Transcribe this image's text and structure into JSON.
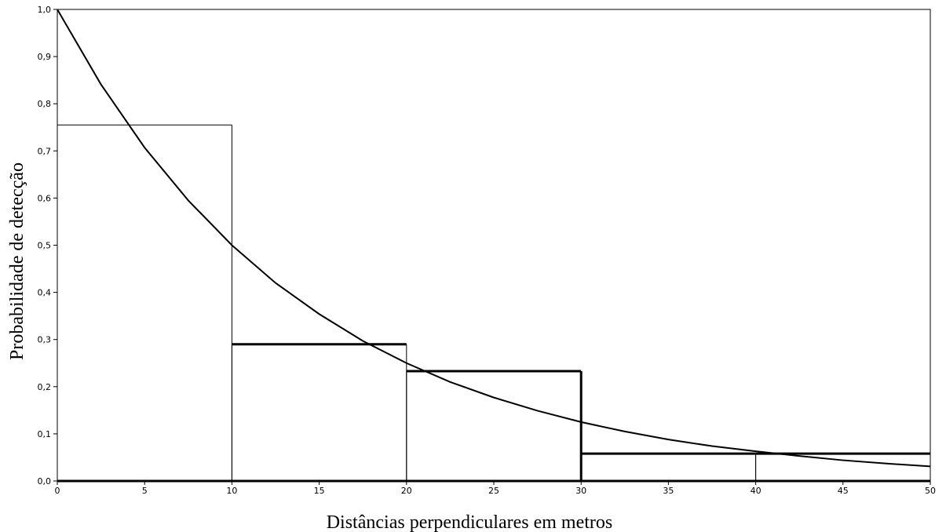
{
  "chart_data": {
    "type": "bar",
    "title": "",
    "xlabel": "Distâncias perpendiculares em metros",
    "ylabel": "Probabilidade de detecção",
    "xlim": [
      0,
      50
    ],
    "ylim": [
      0,
      1.0
    ],
    "grid": false,
    "legend": "none",
    "x_ticks": [
      "0",
      "5",
      "10",
      "15",
      "20",
      "25",
      "30",
      "35",
      "40",
      "45",
      "50"
    ],
    "y_ticks": [
      "0,0",
      "0,1",
      "0,2",
      "0,3",
      "0,4",
      "0,5",
      "0,6",
      "0,7",
      "0,8",
      "0,9",
      "1,0"
    ],
    "histogram": {
      "bins": [
        {
          "x0": 0,
          "x1": 10,
          "value": 0.755
        },
        {
          "x0": 10,
          "x1": 20,
          "value": 0.29
        },
        {
          "x0": 20,
          "x1": 30,
          "value": 0.233
        },
        {
          "x0": 30,
          "x1": 40,
          "value": 0.058
        },
        {
          "x0": 40,
          "x1": 50,
          "value": 0.058
        }
      ]
    },
    "curve": {
      "type": "line",
      "x": [
        0,
        2.5,
        5,
        7.5,
        10,
        12.5,
        15,
        17.5,
        20,
        22.5,
        25,
        27.5,
        30,
        32.5,
        35,
        37.5,
        40,
        42.5,
        45,
        47.5,
        50
      ],
      "y": [
        1.0,
        0.841,
        0.707,
        0.595,
        0.5,
        0.42,
        0.354,
        0.297,
        0.25,
        0.21,
        0.177,
        0.149,
        0.125,
        0.105,
        0.088,
        0.074,
        0.063,
        0.053,
        0.044,
        0.037,
        0.031
      ]
    }
  }
}
